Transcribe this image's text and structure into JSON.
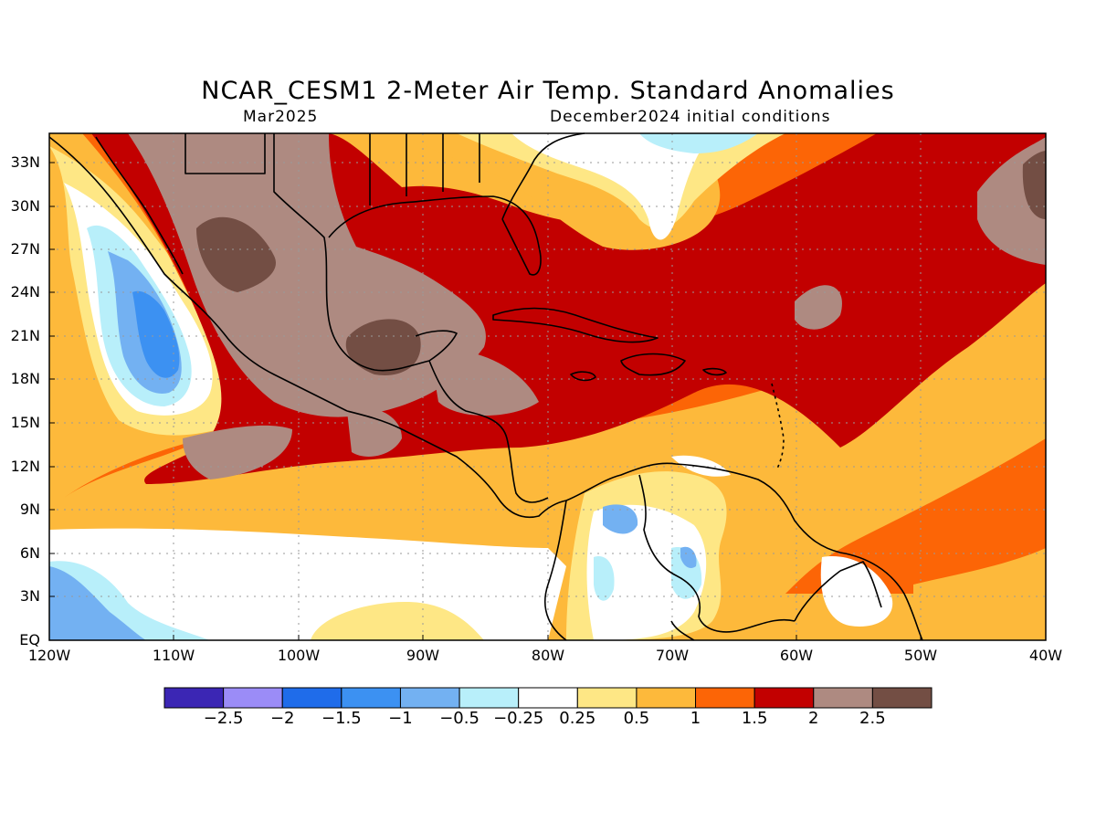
{
  "header": {
    "title": "NCAR_CESM1 2-Meter Air Temp. Standard Anomalies",
    "subtitle_left": "Mar2025",
    "subtitle_right": "December2024 initial conditions"
  },
  "axes": {
    "y_labels": [
      "33N",
      "30N",
      "27N",
      "24N",
      "21N",
      "18N",
      "15N",
      "12N",
      "9N",
      "6N",
      "3N",
      "EQ"
    ],
    "y_values": [
      33,
      30,
      27,
      24,
      21,
      18,
      15,
      12,
      9,
      6,
      3,
      0
    ],
    "x_labels": [
      "120W",
      "110W",
      "100W",
      "90W",
      "80W",
      "70W",
      "60W",
      "50W",
      "40W"
    ],
    "x_values": [
      -120,
      -110,
      -100,
      -90,
      -80,
      -70,
      -60,
      -50,
      -40
    ],
    "lon_range": [
      -120,
      -40
    ],
    "lat_range": [
      0,
      35
    ],
    "grid": "dotted"
  },
  "colorbar": {
    "colors": [
      "#3b26b4",
      "#9b8cf7",
      "#1f6cea",
      "#3c91f2",
      "#73b1f2",
      "#b8effa",
      "#ffffff",
      "#fee785",
      "#fdb93b",
      "#fc6506",
      "#c20000",
      "#ae8a81",
      "#734e44"
    ],
    "labels": [
      "-2.5",
      "-2",
      "-1.5",
      "-1",
      "-0.5",
      "-0.25",
      "0.25",
      "0.5",
      "1",
      "1.5",
      "2",
      "2.5"
    ]
  }
}
